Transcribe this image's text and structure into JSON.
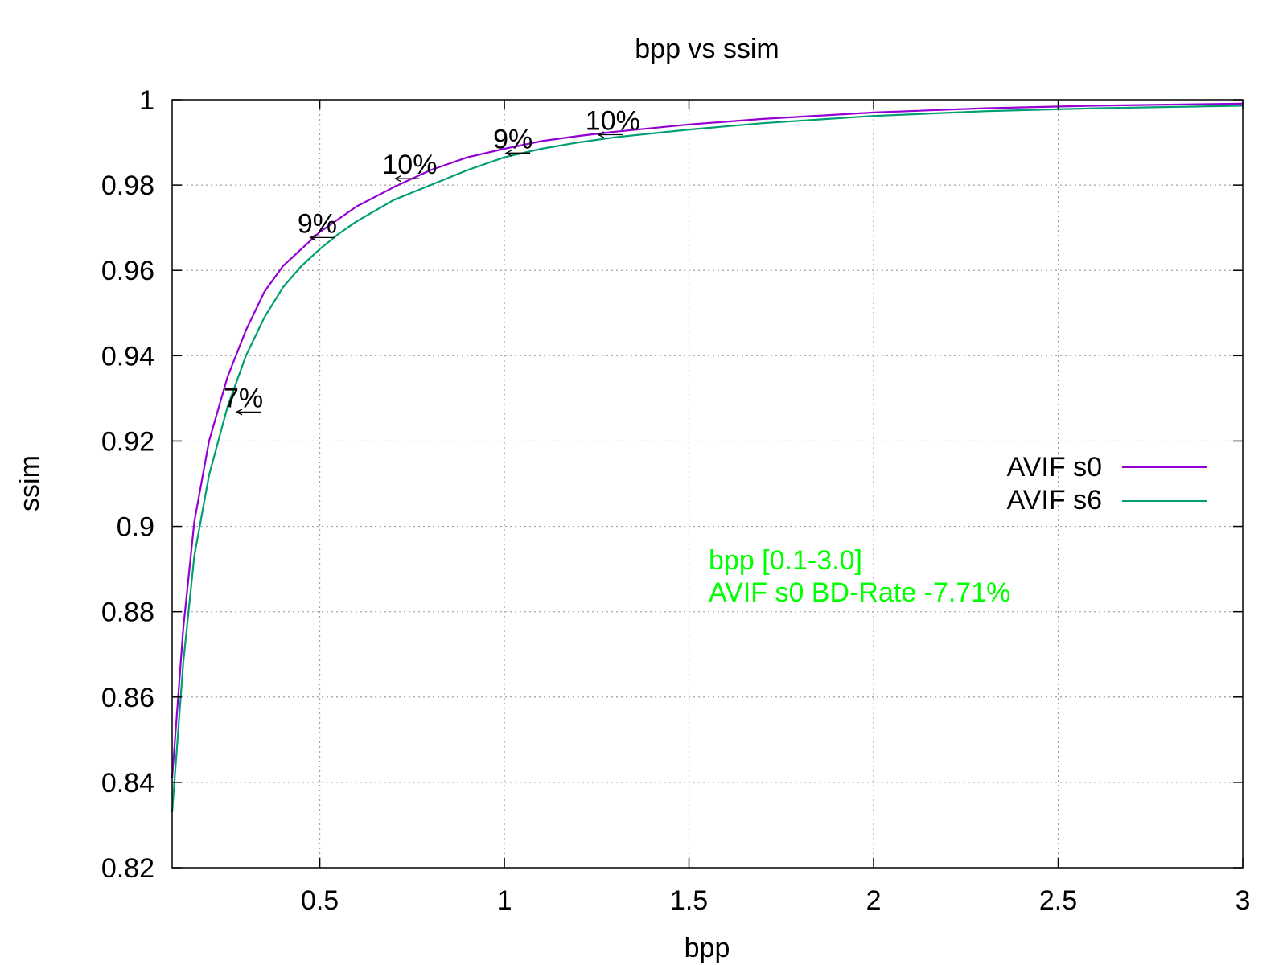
{
  "chart_data": {
    "type": "line",
    "title": "bpp vs ssim",
    "xlabel": "bpp",
    "ylabel": "ssim",
    "xlim": [
      0.1,
      3.0
    ],
    "ylim": [
      0.82,
      1.0
    ],
    "xticks": [
      0.5,
      1,
      1.5,
      2,
      2.5,
      3
    ],
    "xtick_labels": [
      "0.5",
      "1",
      "1.5",
      "2",
      "2.5",
      "3"
    ],
    "yticks": [
      0.82,
      0.84,
      0.86,
      0.88,
      0.9,
      0.92,
      0.94,
      0.96,
      0.98,
      1.0
    ],
    "ytick_labels": [
      "0.82",
      "0.84",
      "0.86",
      "0.88",
      "0.9",
      "0.92",
      "0.94",
      "0.96",
      "0.98",
      "1"
    ],
    "grid": true,
    "legend_position": "right",
    "series": [
      {
        "name": "AVIF s0",
        "color": "#9400d3",
        "x": [
          0.1,
          0.13,
          0.16,
          0.2,
          0.25,
          0.3,
          0.35,
          0.4,
          0.45,
          0.5,
          0.55,
          0.6,
          0.7,
          0.8,
          0.9,
          1.0,
          1.1,
          1.2,
          1.3,
          1.5,
          1.7,
          2.0,
          2.3,
          2.6,
          3.0
        ],
        "y": [
          0.841,
          0.876,
          0.901,
          0.92,
          0.935,
          0.946,
          0.955,
          0.961,
          0.965,
          0.969,
          0.972,
          0.975,
          0.9795,
          0.9835,
          0.9865,
          0.9885,
          0.9903,
          0.9915,
          0.9925,
          0.9942,
          0.9955,
          0.997,
          0.998,
          0.9986,
          0.9991
        ]
      },
      {
        "name": "AVIF s6",
        "color": "#009e73",
        "x": [
          0.1,
          0.13,
          0.16,
          0.2,
          0.25,
          0.3,
          0.35,
          0.4,
          0.45,
          0.5,
          0.55,
          0.6,
          0.7,
          0.8,
          0.9,
          1.0,
          1.1,
          1.2,
          1.3,
          1.5,
          1.7,
          2.0,
          2.3,
          2.6,
          3.0
        ],
        "y": [
          0.833,
          0.868,
          0.893,
          0.912,
          0.928,
          0.94,
          0.949,
          0.956,
          0.961,
          0.965,
          0.9685,
          0.9715,
          0.9765,
          0.98,
          0.9835,
          0.9865,
          0.9885,
          0.99,
          0.9912,
          0.993,
          0.9945,
          0.9962,
          0.9973,
          0.998,
          0.9986
        ]
      }
    ],
    "annotations": [
      {
        "text": "7%",
        "x": 0.27,
        "y": 0.9268
      },
      {
        "text": "9%",
        "x": 0.47,
        "y": 0.9677
      },
      {
        "text": "10%",
        "x": 0.7,
        "y": 0.9815
      },
      {
        "text": "9%",
        "x": 1.0,
        "y": 0.9875
      },
      {
        "text": "10%",
        "x": 1.25,
        "y": 0.9918
      }
    ],
    "note_lines": [
      "bpp [0.1-3.0]",
      "AVIF s0 BD-Rate -7.71%"
    ],
    "note_color": "#00ff00"
  }
}
